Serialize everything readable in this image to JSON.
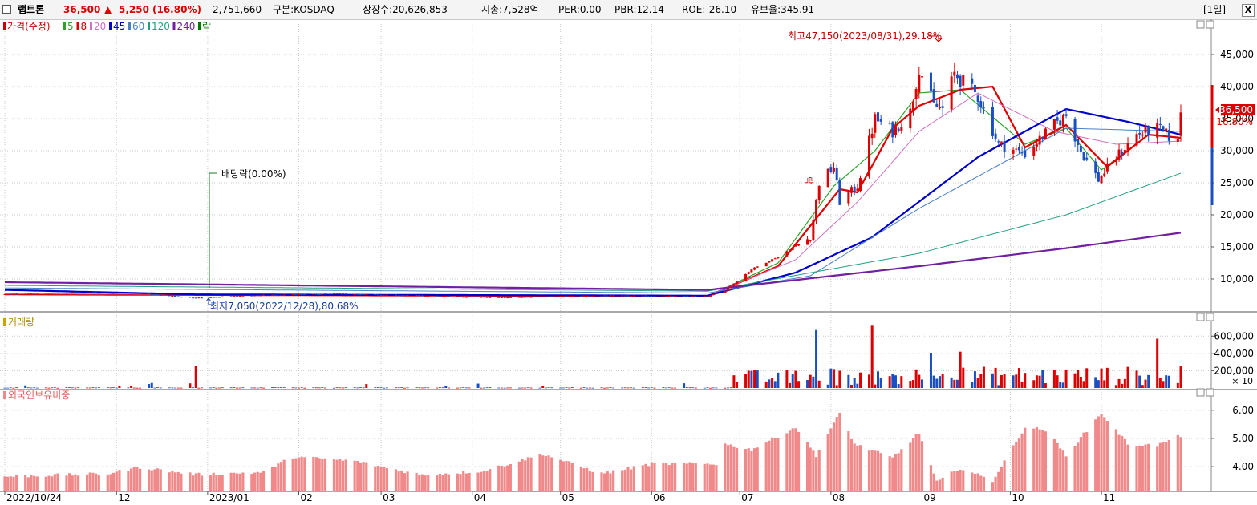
{
  "header": {
    "stock_name": "랩트론",
    "price": "36,500",
    "change_arrow": "▲",
    "change": "5,250",
    "change_pct": "(16.80%)",
    "volume": "2,751,660",
    "market": "구분:KOSDAQ",
    "shares": "상장수:20,626,853",
    "market_cap": "시총:7,528억",
    "per": "PER:0.00",
    "pbr": "PBR:12.14",
    "roe": "ROE:-26.10",
    "reserve": "유보율:345.91",
    "period_button": "[1일]",
    "close_button": "X"
  },
  "price_panel": {
    "legend": [
      {
        "label": "가격(수정)",
        "color": "#cc0000"
      },
      {
        "label": "5",
        "color": "#2aa52a"
      },
      {
        "label": "8",
        "color": "#dd0000"
      },
      {
        "label": "20",
        "color": "#d070c0"
      },
      {
        "label": "45",
        "color": "#0000cc"
      },
      {
        "label": "60",
        "color": "#4a80c8"
      },
      {
        "label": "120",
        "color": "#20a080"
      },
      {
        "label": "240",
        "color": "#7020a0"
      },
      {
        "label": "락",
        "color": "#007700"
      }
    ],
    "high_note": "최고47,150(2023/08/31),29.18%",
    "low_note": "최저7,050(2022/12/28),80.68%",
    "dividend_note": "배당락(0.00%)",
    "ex_rights_mark": "락",
    "current_price_label": "36,500",
    "current_pct_label": "16.80%"
  },
  "volume_panel": {
    "legend": "거래량",
    "unit_note": "× 10"
  },
  "foreign_panel": {
    "legend": "외국인보유비중"
  },
  "x_axis_labels": [
    "2022/10/24",
    "12",
    "2023/01",
    "02",
    "03",
    "04",
    "05",
    "06",
    "07",
    "08",
    "09",
    "10",
    "11"
  ],
  "colors": {
    "up": "#dd0000",
    "down": "#1a4fc4",
    "foreign_bar": "#f08a8a",
    "grid": "#c8c8c8"
  },
  "chart_data": [
    {
      "type": "candlestick",
      "title": "가격(수정)",
      "y_ticks": [
        10000,
        15000,
        20000,
        25000,
        30000,
        35000,
        40000,
        45000
      ],
      "ylim": [
        5000,
        50000
      ],
      "x_labels": [
        "2022/10/24",
        "12",
        "2023/01",
        "02",
        "03",
        "04",
        "05",
        "06",
        "07",
        "08",
        "09",
        "10",
        "11"
      ],
      "price_keypoints": [
        [
          "2022/10/24",
          7600
        ],
        [
          "2022/11/15",
          7900
        ],
        [
          "2022/12/08",
          7800
        ],
        [
          "2022/12/28",
          7050
        ],
        [
          "2023/01/20",
          7500
        ],
        [
          "2023/02/15",
          7700
        ],
        [
          "2023/03/15",
          7400
        ],
        [
          "2023/04/10",
          7100
        ],
        [
          "2023/05/10",
          7400
        ],
        [
          "2023/06/20",
          7300
        ],
        [
          "2023/06/26",
          8200
        ],
        [
          "2023/07/05",
          11500
        ],
        [
          "2023/07/14",
          13500
        ],
        [
          "2023/07/25",
          16500
        ],
        [
          "2023/07/28",
          25000
        ],
        [
          "2023/08/02",
          27500
        ],
        [
          "2023/08/04",
          22000
        ],
        [
          "2023/08/10",
          24500
        ],
        [
          "2023/08/16",
          35000
        ],
        [
          "2023/08/22",
          33000
        ],
        [
          "2023/08/28",
          36000
        ],
        [
          "2023/08/31",
          43000
        ],
        [
          "2023/09/05",
          37000
        ],
        [
          "2023/09/08",
          36500
        ],
        [
          "2023/09/12",
          42000
        ],
        [
          "2023/09/20",
          38500
        ],
        [
          "2023/09/27",
          31000
        ],
        [
          "2023/10/06",
          29500
        ],
        [
          "2023/10/16",
          34000
        ],
        [
          "2023/10/20",
          35500
        ],
        [
          "2023/10/25",
          30000
        ],
        [
          "2023/10/31",
          25500
        ],
        [
          "2023/11/06",
          29000
        ],
        [
          "2023/11/13",
          32500
        ],
        [
          "2023/11/20",
          33500
        ],
        [
          "2023/11/27",
          31250
        ],
        [
          "2023/11/28",
          36500
        ]
      ],
      "moving_averages": [
        {
          "name": "5",
          "points": [
            [
              "2022/10/24",
              7600
            ],
            [
              "2023/06/20",
              7300
            ],
            [
              "2023/07/14",
              12500
            ],
            [
              "2023/08/02",
              24500
            ],
            [
              "2023/08/16",
              30000
            ],
            [
              "2023/08/31",
              39000
            ],
            [
              "2023/09/14",
              39500
            ],
            [
              "2023/10/06",
              31000
            ],
            [
              "2023/10/20",
              33500
            ],
            [
              "2023/11/01",
              27000
            ],
            [
              "2023/11/17",
              32500
            ],
            [
              "2023/11/28",
              32000
            ]
          ]
        },
        {
          "name": "8",
          "points": [
            [
              "2022/10/24",
              7600
            ],
            [
              "2023/06/20",
              7300
            ],
            [
              "2023/07/14",
              12000
            ],
            [
              "2023/08/04",
              24000
            ],
            [
              "2023/08/10",
              23500
            ],
            [
              "2023/08/22",
              33500
            ],
            [
              "2023/08/31",
              37000
            ],
            [
              "2023/09/14",
              39500
            ],
            [
              "2023/09/25",
              40000
            ],
            [
              "2023/10/06",
              30500
            ],
            [
              "2023/10/20",
              34000
            ],
            [
              "2023/11/03",
              27500
            ],
            [
              "2023/11/17",
              32500
            ],
            [
              "2023/11/28",
              32000
            ]
          ]
        },
        {
          "name": "20",
          "points": [
            [
              "2022/10/24",
              7700
            ],
            [
              "2023/06/20",
              7400
            ],
            [
              "2023/07/20",
              13000
            ],
            [
              "2023/08/10",
              22000
            ],
            [
              "2023/08/31",
              33000
            ],
            [
              "2023/09/20",
              39000
            ],
            [
              "2023/10/16",
              33000
            ],
            [
              "2023/11/06",
              31000
            ],
            [
              "2023/11/28",
              31500
            ]
          ]
        },
        {
          "name": "45",
          "points": [
            [
              "2022/10/24",
              8300
            ],
            [
              "2022/12/28",
              7600
            ],
            [
              "2023/06/20",
              7400
            ],
            [
              "2023/07/20",
              11000
            ],
            [
              "2023/08/15",
              16500
            ],
            [
              "2023/09/20",
              29000
            ],
            [
              "2023/10/20",
              36500
            ],
            [
              "2023/11/10",
              34500
            ],
            [
              "2023/11/28",
              32500
            ]
          ]
        },
        {
          "name": "60",
          "points": [
            [
              "2022/10/24",
              8600
            ],
            [
              "2023/06/20",
              7800
            ],
            [
              "2023/07/25",
              10500
            ],
            [
              "2023/08/31",
              21000
            ],
            [
              "2023/10/20",
              33500
            ],
            [
              "2023/11/28",
              33000
            ]
          ]
        },
        {
          "name": "120",
          "points": [
            [
              "2022/10/24",
              9000
            ],
            [
              "2023/06/20",
              8100
            ],
            [
              "2023/08/31",
              14000
            ],
            [
              "2023/10/20",
              20000
            ],
            [
              "2023/11/28",
              26500
            ]
          ]
        },
        {
          "name": "240",
          "points": [
            [
              "2022/10/24",
              9500
            ],
            [
              "2023/06/20",
              8300
            ],
            [
              "2023/08/31",
              12000
            ],
            [
              "2023/10/20",
              14800
            ],
            [
              "2023/11/28",
              17200
            ]
          ]
        }
      ]
    },
    {
      "type": "bar",
      "title": "거래량",
      "y_ticks": [
        200000,
        400000,
        600000
      ],
      "ylim": [
        0,
        760000
      ],
      "notable_values": [
        [
          "2022/12/28",
          260000
        ],
        [
          "2023/07/27",
          670000
        ],
        [
          "2023/08/15",
          720000
        ],
        [
          "2023/09/04",
          400000
        ],
        [
          "2023/09/14",
          420000
        ],
        [
          "2023/11/20",
          570000
        ],
        [
          "2023/11/28",
          250000
        ]
      ]
    },
    {
      "type": "bar",
      "title": "외국인보유비중",
      "y_ticks": [
        4.0,
        5.0,
        6.0
      ],
      "ylim": [
        3.15,
        6.45
      ],
      "keypoints": [
        [
          "2022/10/24",
          3.65
        ],
        [
          "2022/11/28",
          3.75
        ],
        [
          "2022/12/09",
          3.98
        ],
        [
          "2022/12/28",
          3.72
        ],
        [
          "2023/01/20",
          3.8
        ],
        [
          "2023/01/30",
          4.35
        ],
        [
          "2023/02/20",
          4.2
        ],
        [
          "2023/03/15",
          3.7
        ],
        [
          "2023/04/05",
          3.85
        ],
        [
          "2023/04/25",
          4.45
        ],
        [
          "2023/05/15",
          3.75
        ],
        [
          "2023/06/01",
          4.1
        ],
        [
          "2023/06/23",
          4.1
        ],
        [
          "2023/06/26",
          4.8
        ],
        [
          "2023/07/05",
          4.6
        ],
        [
          "2023/07/20",
          5.4
        ],
        [
          "2023/07/27",
          4.4
        ],
        [
          "2023/08/04",
          5.9
        ],
        [
          "2023/08/09",
          4.8
        ],
        [
          "2023/08/22",
          4.3
        ],
        [
          "2023/08/31",
          5.2
        ],
        [
          "2023/09/06",
          3.45
        ],
        [
          "2023/09/14",
          3.95
        ],
        [
          "2023/09/25",
          3.5
        ],
        [
          "2023/10/06",
          5.4
        ],
        [
          "2023/10/13",
          5.3
        ],
        [
          "2023/10/20",
          4.4
        ],
        [
          "2023/11/01",
          5.9
        ],
        [
          "2023/11/10",
          4.8
        ],
        [
          "2023/11/20",
          4.75
        ],
        [
          "2023/11/28",
          5.1
        ]
      ]
    }
  ]
}
